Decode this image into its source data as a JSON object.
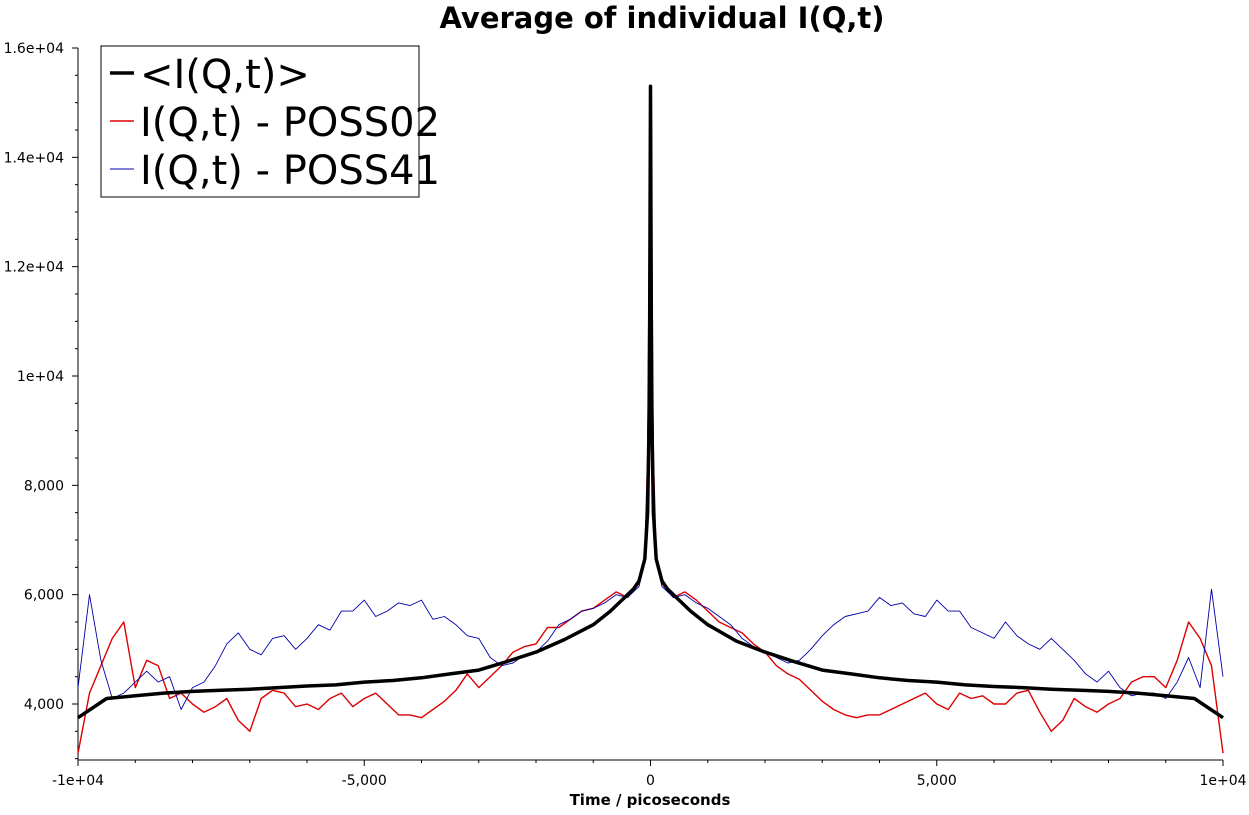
{
  "chart_data": {
    "type": "line",
    "title": "Average of individual I(Q,t)",
    "xlabel": "Time / picoseconds",
    "ylabel": "",
    "xlim": [
      -10000,
      10000
    ],
    "ylim": [
      3000,
      16000
    ],
    "grid": false,
    "legend_position": "top-left",
    "x_ticks": [
      {
        "value": -10000,
        "label": "-1e+04"
      },
      {
        "value": -5000,
        "label": "-5,000"
      },
      {
        "value": 0,
        "label": "0"
      },
      {
        "value": 5000,
        "label": "5,000"
      },
      {
        "value": 10000,
        "label": "1e+04"
      }
    ],
    "y_ticks": [
      {
        "value": 4000,
        "label": "4,000"
      },
      {
        "value": 6000,
        "label": "6,000"
      },
      {
        "value": 8000,
        "label": "8,000"
      },
      {
        "value": 10000,
        "label": "1e+04"
      },
      {
        "value": 12000,
        "label": "1.2e+04"
      },
      {
        "value": 14000,
        "label": "1.4e+04"
      },
      {
        "value": 16000,
        "label": "1.6e+04"
      }
    ],
    "series": [
      {
        "name": "<I(Q,t)>",
        "color": "#000000",
        "width": 3.5,
        "x": [
          -10000,
          -9500,
          -9000,
          -8500,
          -8000,
          -7500,
          -7000,
          -6500,
          -6000,
          -5500,
          -5000,
          -4500,
          -4000,
          -3500,
          -3000,
          -2500,
          -2000,
          -1500,
          -1000,
          -700,
          -500,
          -300,
          -200,
          -100,
          -50,
          -20,
          0,
          20,
          50,
          100,
          200,
          300,
          500,
          700,
          1000,
          1500,
          2000,
          2500,
          3000,
          3500,
          4000,
          4500,
          5000,
          5500,
          6000,
          6500,
          7000,
          7500,
          8000,
          8500,
          9000,
          9500,
          10000
        ],
        "y": [
          3750,
          4100,
          4150,
          4200,
          4230,
          4250,
          4270,
          4300,
          4330,
          4350,
          4400,
          4430,
          4480,
          4550,
          4620,
          4780,
          4950,
          5180,
          5450,
          5700,
          5900,
          6100,
          6250,
          6650,
          7500,
          9500,
          15300,
          9500,
          7500,
          6650,
          6250,
          6100,
          5900,
          5700,
          5450,
          5150,
          4950,
          4780,
          4620,
          4550,
          4480,
          4430,
          4400,
          4350,
          4320,
          4300,
          4270,
          4250,
          4230,
          4200,
          4150,
          4100,
          3750
        ]
      },
      {
        "name": "I(Q,t) - POSS02",
        "color": "#dd0000",
        "width": 1.4,
        "x": [
          -10000,
          -9800,
          -9600,
          -9400,
          -9200,
          -9000,
          -8800,
          -8600,
          -8400,
          -8200,
          -8000,
          -7800,
          -7600,
          -7400,
          -7200,
          -7000,
          -6800,
          -6600,
          -6400,
          -6200,
          -6000,
          -5800,
          -5600,
          -5400,
          -5200,
          -5000,
          -4800,
          -4600,
          -4400,
          -4200,
          -4000,
          -3800,
          -3600,
          -3400,
          -3200,
          -3000,
          -2800,
          -2600,
          -2400,
          -2200,
          -2000,
          -1800,
          -1600,
          -1400,
          -1200,
          -1000,
          -800,
          -600,
          -400,
          -200,
          -100,
          -50,
          0,
          50,
          100,
          200,
          400,
          600,
          800,
          1000,
          1200,
          1400,
          1600,
          1800,
          2000,
          2200,
          2400,
          2600,
          2800,
          3000,
          3200,
          3400,
          3600,
          3800,
          4000,
          4200,
          4400,
          4600,
          4800,
          5000,
          5200,
          5400,
          5600,
          5800,
          6000,
          6200,
          6400,
          6600,
          6800,
          7000,
          7200,
          7400,
          7600,
          7800,
          8000,
          8200,
          8400,
          8600,
          8800,
          9000,
          9200,
          9400,
          9600,
          9800,
          10000
        ],
        "y": [
          3100,
          4200,
          4700,
          5200,
          5500,
          4300,
          4800,
          4700,
          4100,
          4200,
          4000,
          3850,
          3950,
          4100,
          3700,
          3500,
          4100,
          4250,
          4200,
          3950,
          4000,
          3900,
          4100,
          4200,
          3950,
          4100,
          4200,
          4000,
          3800,
          3800,
          3750,
          3900,
          4050,
          4250,
          4550,
          4300,
          4500,
          4700,
          4950,
          5050,
          5100,
          5400,
          5400,
          5550,
          5700,
          5750,
          5900,
          6050,
          5950,
          6200,
          6700,
          8500,
          15300,
          8500,
          6700,
          6200,
          5950,
          6050,
          5900,
          5700,
          5500,
          5400,
          5300,
          5100,
          4950,
          4700,
          4550,
          4450,
          4250,
          4050,
          3900,
          3800,
          3750,
          3800,
          3800,
          3900,
          4000,
          4100,
          4200,
          4000,
          3900,
          4200,
          4100,
          4150,
          4000,
          4000,
          4200,
          4250,
          3850,
          3500,
          3700,
          4100,
          3950,
          3850,
          4000,
          4100,
          4400,
          4500,
          4500,
          4300,
          4800,
          5500,
          5200,
          4700,
          3100
        ]
      },
      {
        "name": "I(Q,t) - POSS41",
        "color": "#0000aa",
        "width": 0.9,
        "x": [
          -10000,
          -9800,
          -9600,
          -9400,
          -9200,
          -9000,
          -8800,
          -8600,
          -8400,
          -8200,
          -8000,
          -7800,
          -7600,
          -7400,
          -7200,
          -7000,
          -6800,
          -6600,
          -6400,
          -6200,
          -6000,
          -5800,
          -5600,
          -5400,
          -5200,
          -5000,
          -4800,
          -4600,
          -4400,
          -4200,
          -4000,
          -3800,
          -3600,
          -3400,
          -3200,
          -3000,
          -2800,
          -2600,
          -2400,
          -2200,
          -2000,
          -1800,
          -1600,
          -1400,
          -1200,
          -1000,
          -800,
          -600,
          -400,
          -200,
          -100,
          -50,
          0,
          50,
          100,
          200,
          400,
          600,
          800,
          1000,
          1200,
          1400,
          1600,
          1800,
          2000,
          2200,
          2400,
          2600,
          2800,
          3000,
          3200,
          3400,
          3600,
          3800,
          4000,
          4200,
          4400,
          4600,
          4800,
          5000,
          5200,
          5400,
          5600,
          5800,
          6000,
          6200,
          6400,
          6600,
          6800,
          7000,
          7200,
          7400,
          7600,
          7800,
          8000,
          8200,
          8400,
          8600,
          8800,
          9000,
          9200,
          9400,
          9600,
          9800,
          10000
        ],
        "y": [
          4300,
          6000,
          4800,
          4100,
          4200,
          4400,
          4600,
          4400,
          4500,
          3900,
          4300,
          4400,
          4700,
          5100,
          5300,
          5000,
          4900,
          5200,
          5250,
          5000,
          5200,
          5450,
          5350,
          5700,
          5700,
          5900,
          5600,
          5700,
          5850,
          5800,
          5900,
          5550,
          5600,
          5450,
          5250,
          5200,
          4850,
          4700,
          4750,
          4900,
          4950,
          5150,
          5450,
          5550,
          5700,
          5750,
          5850,
          6000,
          5950,
          6150,
          6600,
          8500,
          15300,
          8500,
          6600,
          6150,
          5950,
          6000,
          5850,
          5750,
          5600,
          5450,
          5200,
          5050,
          4950,
          4850,
          4750,
          4800,
          5000,
          5250,
          5450,
          5600,
          5650,
          5700,
          5950,
          5800,
          5850,
          5650,
          5600,
          5900,
          5700,
          5700,
          5400,
          5300,
          5200,
          5500,
          5250,
          5100,
          5000,
          5200,
          5000,
          4800,
          4550,
          4400,
          4600,
          4300,
          4150,
          4200,
          4200,
          4100,
          4400,
          4850,
          4300,
          6100,
          4500
        ]
      }
    ]
  }
}
